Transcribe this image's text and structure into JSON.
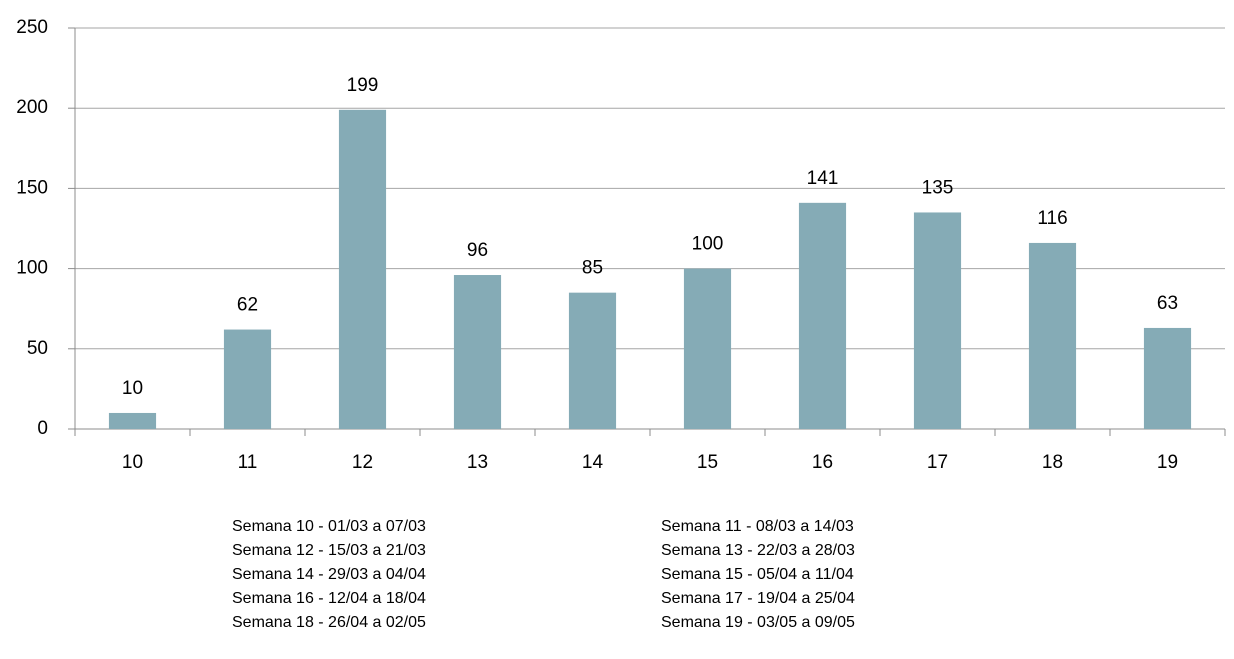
{
  "chart_data": {
    "type": "bar",
    "categories": [
      "10",
      "11",
      "12",
      "13",
      "14",
      "15",
      "16",
      "17",
      "18",
      "19"
    ],
    "values": [
      10,
      62,
      199,
      96,
      85,
      100,
      141,
      135,
      116,
      63
    ],
    "color": "#85abb6",
    "ylim": [
      0,
      250
    ],
    "yticks": [
      0,
      50,
      100,
      150,
      200,
      250
    ],
    "grid": true,
    "annotations": [
      "Semana 10 - 01/03 a 07/03",
      "Semana 11 - 08/03 a 14/03",
      "Semana 12 - 15/03 a 21/03",
      "Semana 13 - 22/03 a 28/03",
      "Semana 14 - 29/03 a 04/04",
      "Semana 15 - 05/04 a 11/04",
      "Semana 16 - 12/04 a 18/04",
      "Semana 17 - 19/04 a 25/04",
      "Semana 18 - 26/04 a 02/05",
      "Semana 19 - 03/05 a 09/05"
    ]
  }
}
